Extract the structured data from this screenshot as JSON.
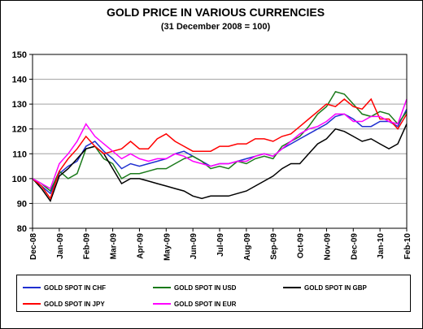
{
  "chart_data": {
    "type": "line",
    "title": "GOLD PRICE IN VARIOUS CURRENCIES",
    "subtitle": "(31 December 2008 = 100)",
    "categories": [
      "Dec-08",
      null,
      null,
      "Jan-09",
      null,
      null,
      "Feb-09",
      null,
      null,
      "Mar-09",
      null,
      null,
      "Apr-09",
      null,
      null,
      "May-09",
      null,
      null,
      "Jun-09",
      null,
      null,
      "Jul-09",
      null,
      null,
      "Aug-09",
      null,
      null,
      "Sep-09",
      null,
      null,
      "Oct-09",
      null,
      null,
      "Nov-09",
      null,
      null,
      "Dec-09",
      null,
      null,
      "Jan-10",
      null,
      null,
      "Feb-10"
    ],
    "ylim": [
      80,
      150
    ],
    "yticks": [
      80,
      90,
      100,
      110,
      120,
      130,
      140,
      150
    ],
    "grid": true,
    "series": [
      {
        "name": "GOLD SPOT IN CHF",
        "color": "#1f2fd0",
        "values": [
          100,
          97,
          94,
          102,
          105,
          107,
          113,
          115,
          111,
          108,
          104,
          106,
          105,
          106,
          107,
          108,
          110,
          111,
          109,
          107,
          105,
          106,
          106,
          107,
          108,
          109,
          110,
          109,
          112,
          114,
          116,
          118,
          120,
          122,
          125,
          126,
          124,
          121,
          121,
          123,
          123,
          121,
          128
        ]
      },
      {
        "name": "GOLD SPOT IN USD",
        "color": "#1a7a1a",
        "values": [
          100,
          98,
          95,
          103,
          100,
          102,
          112,
          113,
          108,
          106,
          100,
          102,
          102,
          103,
          104,
          104,
          106,
          108,
          109,
          107,
          104,
          105,
          104,
          107,
          106,
          108,
          109,
          108,
          113,
          115,
          117,
          121,
          126,
          129,
          135,
          134,
          130,
          126,
          125,
          127,
          126,
          122,
          127
        ]
      },
      {
        "name": "GOLD SPOT IN GBP",
        "color": "#000000",
        "values": [
          100,
          96,
          91,
          101,
          104,
          108,
          112,
          113,
          110,
          104,
          98,
          100,
          100,
          99,
          98,
          97,
          96,
          95,
          93,
          92,
          93,
          93,
          93,
          94,
          95,
          97,
          99,
          101,
          104,
          106,
          106,
          110,
          114,
          116,
          120,
          119,
          117,
          115,
          116,
          114,
          112,
          114,
          122
        ]
      },
      {
        "name": "GOLD SPOT IN JPY",
        "color": "#ff0000",
        "values": [
          100,
          97,
          92,
          103,
          108,
          112,
          117,
          113,
          110,
          111,
          112,
          115,
          112,
          112,
          116,
          118,
          115,
          113,
          111,
          111,
          111,
          113,
          113,
          114,
          114,
          116,
          116,
          115,
          117,
          118,
          121,
          124,
          127,
          130,
          129,
          132,
          129,
          128,
          132,
          124,
          124,
          120,
          126
        ]
      },
      {
        "name": "GOLD SPOT IN EUR",
        "color": "#ff00ff",
        "values": [
          100,
          98,
          96,
          106,
          110,
          115,
          122,
          117,
          114,
          111,
          108,
          110,
          108,
          107,
          108,
          108,
          110,
          109,
          107,
          106,
          105,
          106,
          106,
          107,
          107,
          109,
          110,
          109,
          112,
          115,
          118,
          120,
          121,
          123,
          126,
          126,
          123,
          123,
          125,
          125,
          123,
          122,
          132
        ]
      }
    ]
  }
}
